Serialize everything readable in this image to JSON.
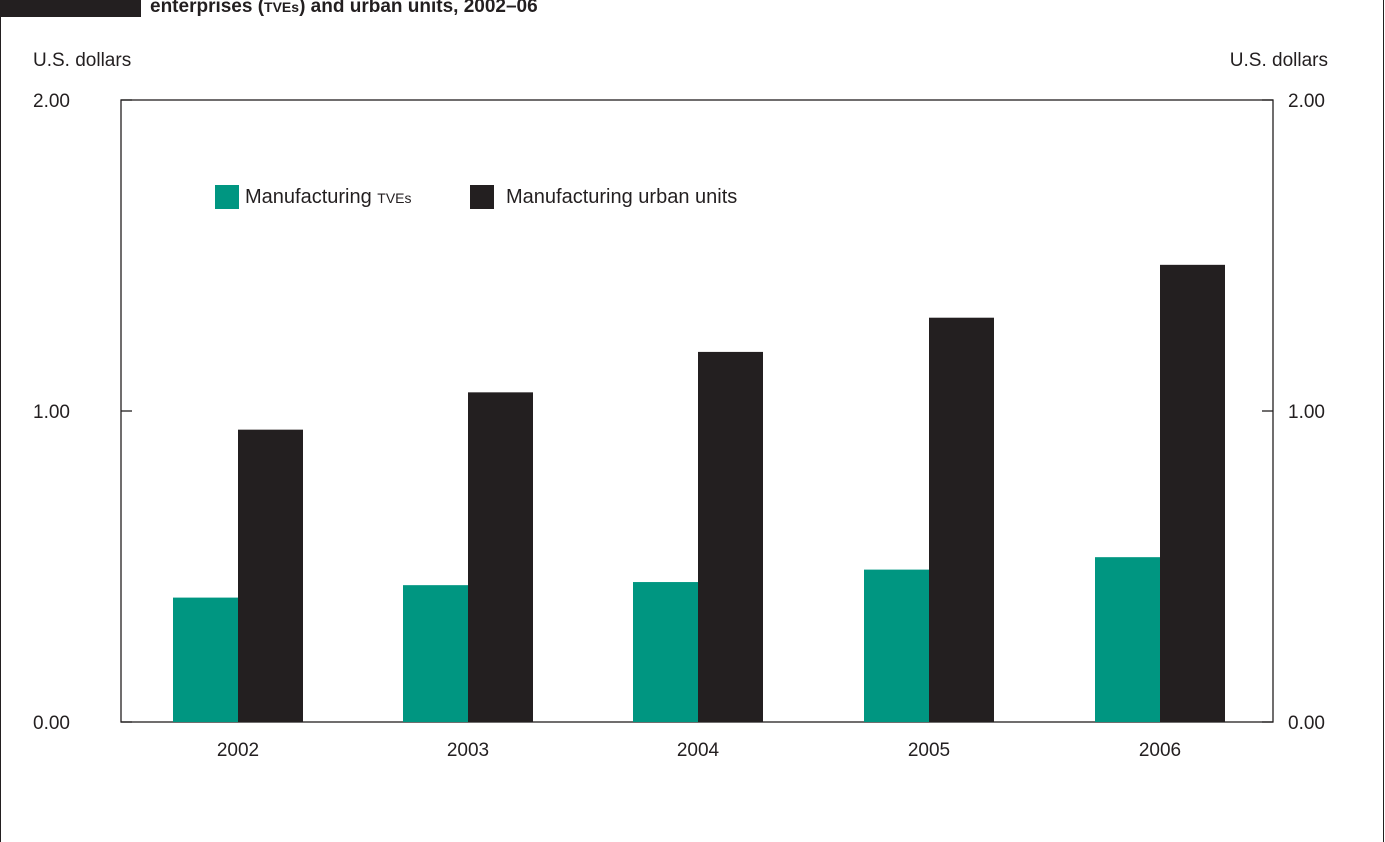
{
  "title": {
    "line2_prefix": "enterprises (",
    "line2_abbr": "TVEs",
    "line2_suffix": ") and urban units, 2002–06"
  },
  "chart_data": {
    "type": "bar",
    "categories": [
      "2002",
      "2003",
      "2004",
      "2005",
      "2006"
    ],
    "series": [
      {
        "name": "Manufacturing TVEs",
        "values": [
          0.4,
          0.44,
          0.45,
          0.49,
          0.53
        ],
        "color": "#009681"
      },
      {
        "name": "Manufacturing urban units",
        "values": [
          0.94,
          1.06,
          1.19,
          1.3,
          1.47
        ],
        "color": "#231f20"
      }
    ],
    "ylim": [
      0,
      2
    ],
    "yticks": [
      "0.00",
      "1.00",
      "2.00"
    ],
    "ylabel_left": "U.S. dollars",
    "ylabel_right": "U.S. dollars",
    "legend": {
      "position": "top-left",
      "items": [
        {
          "prefix": "Manufacturing ",
          "abbr": "TVEs"
        },
        {
          "prefix": "Manufacturing urban units",
          "abbr": ""
        }
      ]
    },
    "grid": false
  }
}
